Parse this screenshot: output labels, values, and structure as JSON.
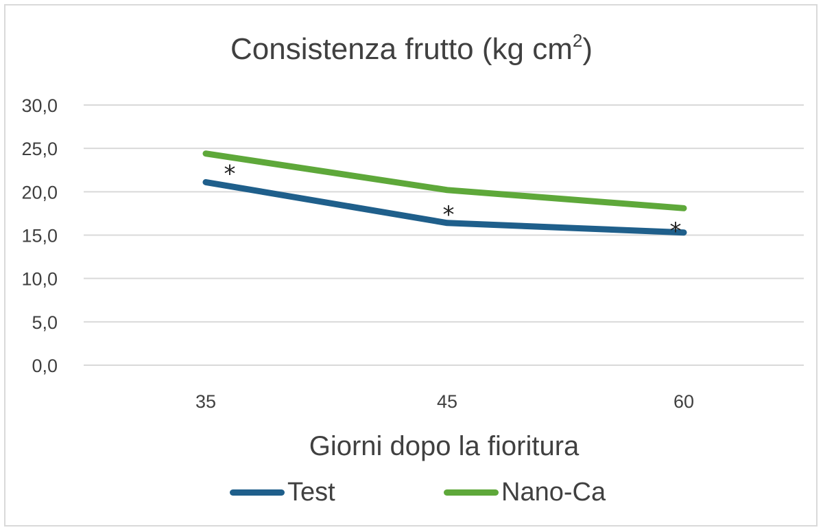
{
  "chart_data": {
    "type": "line",
    "title": "Consistenza frutto (kg cm2)",
    "title_main": "Consistenza frutto (kg cm",
    "title_sup": "2",
    "title_close": ")",
    "xlabel": "Giorni dopo la fioritura",
    "ylabel": "",
    "categories": [
      "35",
      "45",
      "60"
    ],
    "y_ticks": [
      "30,0",
      "25,0",
      "20,0",
      "15,0",
      "10,0",
      "5,0",
      "0,0"
    ],
    "ylim": [
      0,
      30
    ],
    "grid": true,
    "legend_position": "bottom",
    "series": [
      {
        "name": "Test",
        "color": "#1f5f8b",
        "values": [
          21.1,
          16.4,
          15.3
        ]
      },
      {
        "name": "Nano-Ca",
        "color": "#5ea83a",
        "values": [
          24.4,
          20.2,
          18.1
        ]
      }
    ],
    "annotations": [
      {
        "text": "*",
        "category": "35",
        "y": 22.6
      },
      {
        "text": "*",
        "category": "45",
        "y": 17.9
      },
      {
        "text": "*",
        "category": "60",
        "y": 16.0
      }
    ]
  },
  "legend": {
    "items": [
      {
        "label": "Test",
        "color": "#1f5f8b"
      },
      {
        "label": "Nano-Ca",
        "color": "#5ea83a"
      }
    ]
  }
}
